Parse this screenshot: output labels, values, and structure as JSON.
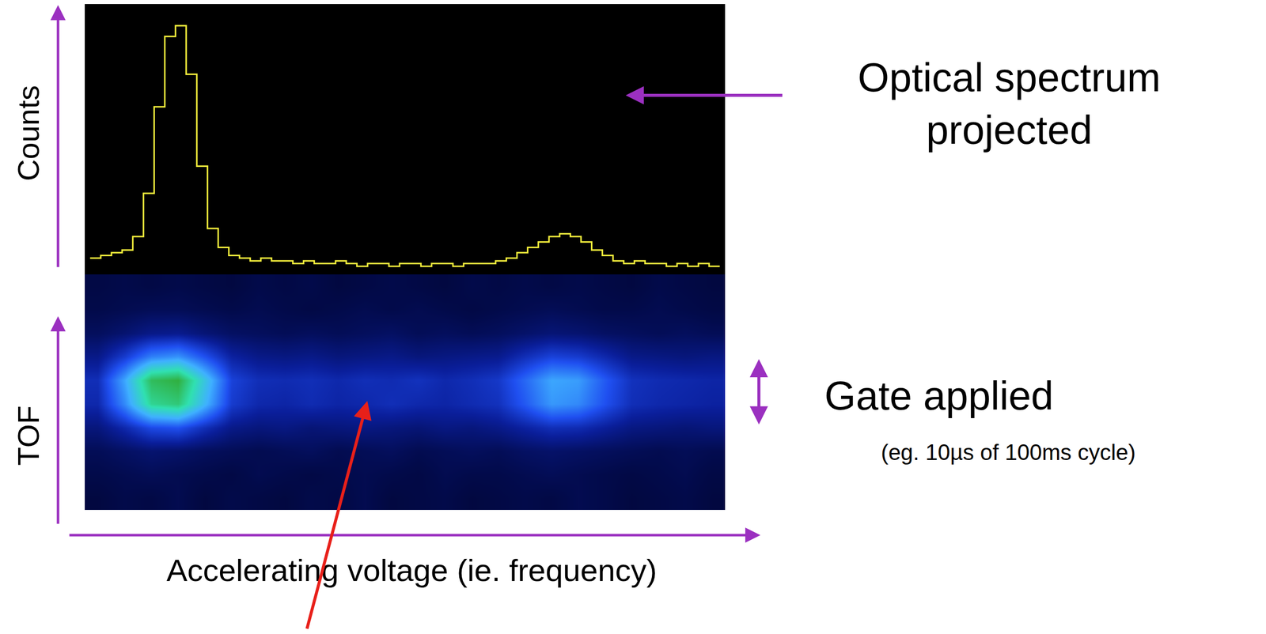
{
  "chart_data": [
    {
      "type": "line",
      "ylabel": "Counts",
      "annotation": {
        "lines": [
          "Optical spectrum",
          "projected"
        ]
      },
      "color": "#f5f03c",
      "line_style": "steps",
      "tick_labels": false,
      "grid": false,
      "xlim": [
        -0.5,
        59.5
      ],
      "ylim": [
        0,
        100
      ],
      "x": [
        0,
        1,
        2,
        3,
        4,
        5,
        6,
        7,
        8,
        9,
        10,
        11,
        12,
        13,
        14,
        15,
        16,
        17,
        18,
        19,
        20,
        21,
        22,
        23,
        24,
        25,
        26,
        27,
        28,
        29,
        30,
        31,
        32,
        33,
        34,
        35,
        36,
        37,
        38,
        39,
        40,
        41,
        42,
        43,
        44,
        45,
        46,
        47,
        48,
        49,
        50,
        51,
        52,
        53,
        54,
        55,
        56,
        57,
        58,
        59
      ],
      "values": [
        6,
        7,
        8,
        9,
        14,
        30,
        62,
        88,
        92,
        74,
        40,
        17,
        10,
        7,
        6,
        5,
        6,
        5,
        5,
        4,
        5,
        4,
        4,
        5,
        4,
        3,
        4,
        4,
        3,
        4,
        4,
        3,
        4,
        4,
        3,
        4,
        4,
        4,
        5,
        6,
        8,
        10,
        12,
        14,
        15,
        14,
        12,
        9,
        7,
        5,
        4,
        5,
        4,
        4,
        3,
        4,
        3,
        4,
        3,
        3
      ]
    },
    {
      "type": "heatmap",
      "xlabel": "Accelerating voltage (ie. frequency)",
      "ylabel": "TOF",
      "gate": {
        "label": "Gate applied",
        "note": "(eg. 10µs of 100ms cycle)",
        "range": [
          3.1,
          5.9
        ]
      },
      "tick_labels": false,
      "grid": false,
      "xlim": [
        -0.5,
        23.5
      ],
      "ylim": [
        -0.5,
        9.5
      ],
      "zlim": [
        0,
        100
      ],
      "x": [
        0,
        1,
        2,
        3,
        4,
        5,
        6,
        7,
        8,
        9,
        10,
        11,
        12,
        13,
        14,
        15,
        16,
        17,
        18,
        19,
        20,
        21,
        22,
        23
      ],
      "y": [
        0,
        1,
        2,
        3,
        4,
        5,
        6,
        7,
        8,
        9
      ],
      "z": [
        [
          10,
          12,
          11,
          13,
          10,
          12,
          11,
          10,
          12,
          11,
          13,
          10,
          11,
          12,
          10,
          11,
          12,
          11,
          13,
          12,
          10,
          11,
          12,
          10
        ],
        [
          12,
          13,
          14,
          13,
          12,
          11,
          13,
          12,
          11,
          12,
          13,
          12,
          11,
          13,
          12,
          12,
          13,
          14,
          13,
          12,
          11,
          12,
          13,
          11
        ],
        [
          14,
          16,
          18,
          17,
          15,
          14,
          13,
          14,
          15,
          13,
          14,
          15,
          13,
          14,
          15,
          14,
          16,
          17,
          16,
          15,
          14,
          13,
          14,
          13
        ],
        [
          20,
          28,
          38,
          40,
          30,
          22,
          20,
          21,
          19,
          20,
          21,
          20,
          19,
          21,
          20,
          22,
          26,
          30,
          29,
          25,
          21,
          20,
          19,
          20
        ],
        [
          28,
          52,
          85,
          90,
          62,
          34,
          28,
          27,
          29,
          27,
          28,
          30,
          28,
          27,
          29,
          31,
          42,
          55,
          52,
          40,
          30,
          28,
          27,
          26
        ],
        [
          30,
          58,
          95,
          100,
          68,
          36,
          30,
          29,
          30,
          28,
          30,
          29,
          31,
          28,
          30,
          33,
          45,
          58,
          56,
          42,
          31,
          29,
          28,
          27
        ],
        [
          22,
          34,
          50,
          54,
          40,
          26,
          22,
          21,
          22,
          20,
          21,
          22,
          20,
          21,
          22,
          23,
          30,
          36,
          34,
          28,
          22,
          21,
          20,
          21
        ],
        [
          15,
          18,
          22,
          23,
          19,
          16,
          15,
          14,
          15,
          14,
          15,
          16,
          14,
          15,
          14,
          15,
          17,
          19,
          18,
          16,
          15,
          14,
          15,
          14
        ],
        [
          12,
          13,
          14,
          14,
          13,
          12,
          13,
          12,
          11,
          12,
          13,
          12,
          13,
          12,
          11,
          12,
          13,
          14,
          13,
          12,
          12,
          13,
          12,
          11
        ],
        [
          11,
          12,
          11,
          12,
          11,
          10,
          12,
          11,
          12,
          10,
          11,
          12,
          11,
          10,
          12,
          11,
          12,
          11,
          12,
          11,
          10,
          12,
          11,
          10
        ]
      ]
    }
  ]
}
